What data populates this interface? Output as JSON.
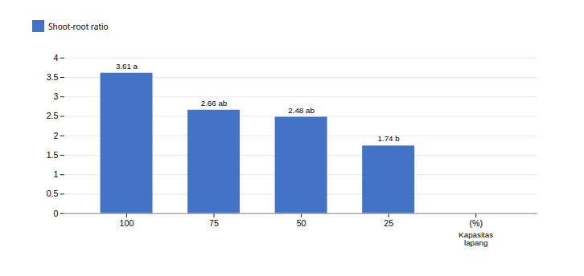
{
  "chart_data": {
    "type": "bar",
    "categories": [
      "100",
      "75",
      "50",
      "25",
      "(%)"
    ],
    "series": [
      {
        "name": "Shoot-root ratio",
        "color": "#4472C4",
        "values": [
          3.61,
          2.66,
          2.48,
          1.74,
          null
        ],
        "value_labels": [
          "3.61 a",
          "2.66 ab",
          "2.48 ab",
          "1.74 b",
          null
        ]
      }
    ],
    "annotations": [
      {
        "text": "Kapasitas\nlapang",
        "category": "(%)"
      }
    ],
    "ylim": [
      0,
      4
    ],
    "yticks": [
      0,
      0.5,
      1,
      1.5,
      2,
      2.5,
      3,
      3.5,
      4
    ],
    "grid": true,
    "legend": "right",
    "data_labels": true
  }
}
